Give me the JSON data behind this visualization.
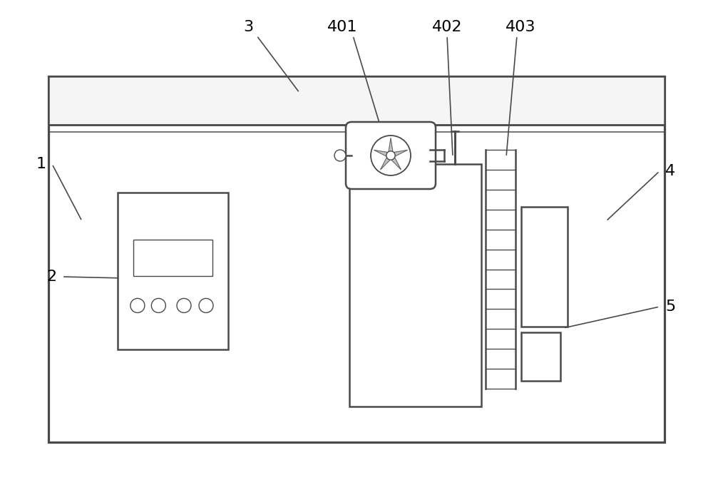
{
  "bg_color": "#ffffff",
  "line_color": "#4a4a4a",
  "lw": 1.8,
  "tlw": 1.0,
  "fig_width": 10.0,
  "fig_height": 6.73,
  "font_size": 16
}
